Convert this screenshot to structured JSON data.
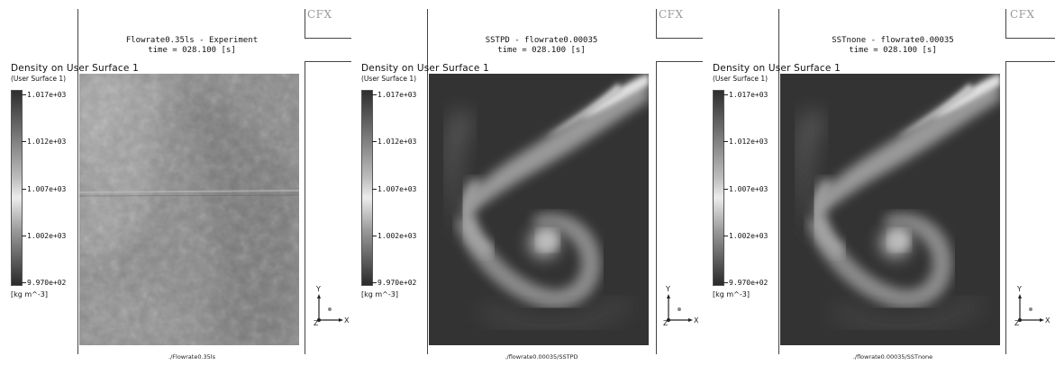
{
  "panels": [
    {
      "cfx_logo": "CFX",
      "title_line1": "Flowrate0.35ls  -  Experiment",
      "title_line2": "time = 028.100 [s]",
      "legend_title": "Density on User Surface 1",
      "legend_sub": "(User Surface 1)",
      "ticks": [
        "1.017e+03",
        "1.012e+03",
        "1.007e+03",
        "1.002e+03",
        "9.970e+02"
      ],
      "units": "[kg m^-3]",
      "path": "./Flowrate0.35ls",
      "axis_x": "X",
      "axis_y": "Y",
      "axis_z": "Z"
    },
    {
      "cfx_logo": "CFX",
      "title_line1": "SSTPD  -  flowrate0.00035",
      "title_line2": "time = 028.100 [s]",
      "legend_title": "Density on User Surface 1",
      "legend_sub": "(User Surface 1)",
      "ticks": [
        "1.017e+03",
        "1.012e+03",
        "1.007e+03",
        "1.002e+03",
        "9.970e+02"
      ],
      "units": "[kg m^-3]",
      "path": "./flowrate0.00035/SSTPD",
      "axis_x": "X",
      "axis_y": "Y",
      "axis_z": "Z"
    },
    {
      "cfx_logo": "CFX",
      "title_line1": "SSTnone  -  flowrate0.00035",
      "title_line2": "time = 028.100 [s]",
      "legend_title": "Density on User Surface 1",
      "legend_sub": "(User Surface 1)",
      "ticks": [
        "1.017e+03",
        "1.012e+03",
        "1.007e+03",
        "1.002e+03",
        "9.970e+02"
      ],
      "units": "[kg m^-3]",
      "path": "./flowrate0.00035/SSTnone",
      "axis_x": "X",
      "axis_y": "Y",
      "axis_z": "Z"
    }
  ]
}
